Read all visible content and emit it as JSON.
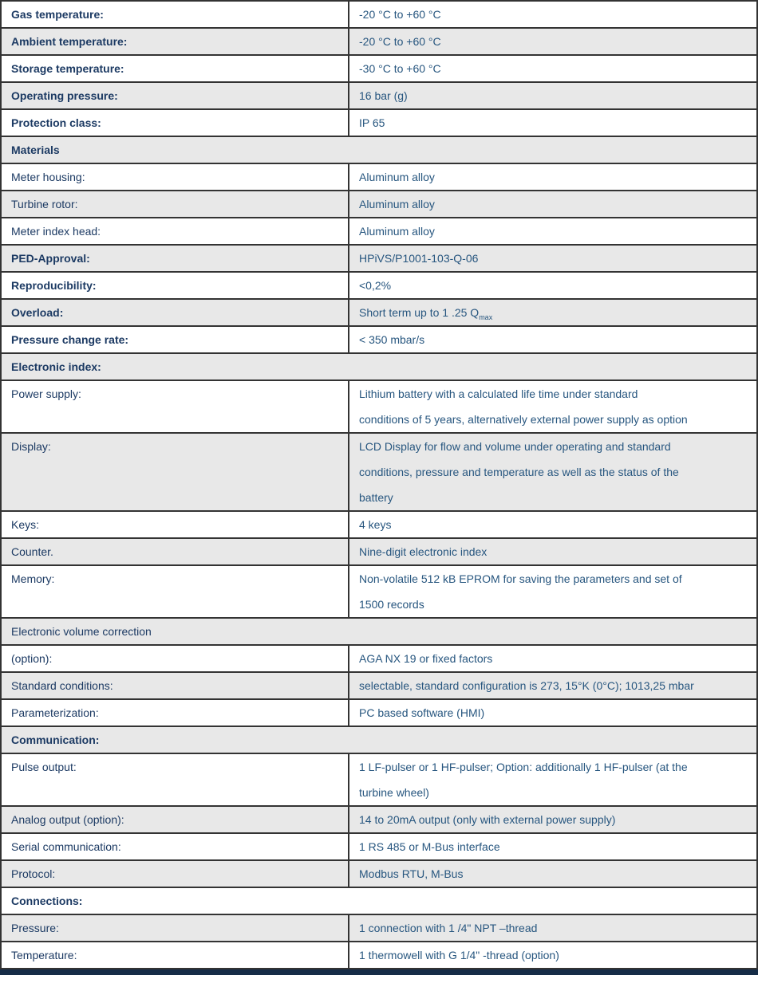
{
  "colors": {
    "border": "#333333",
    "row_shade": "#E8E8E8",
    "label_text": "#1C3A63",
    "value_text": "#27567F",
    "bottom_bar": "#152C47"
  },
  "table": {
    "rows": [
      {
        "label": "Gas temperature:",
        "value": "-20 °C to +60 °C"
      },
      {
        "label": "Ambient temperature:",
        "value": "-20 °C to +60 °C"
      },
      {
        "label": "Storage temperature:",
        "value": "-30 °C to +60 °C"
      },
      {
        "label": "Operating pressure:",
        "value": "16 bar (g)"
      },
      {
        "label": "Protection class:",
        "value": "IP 65"
      },
      {
        "label": "Materials"
      },
      {
        "label": "Meter housing:",
        "value": "Aluminum alloy"
      },
      {
        "label": "Turbine rotor:",
        "value": "Aluminum alloy"
      },
      {
        "label": "Meter index head:",
        "value": "Aluminum alloy"
      },
      {
        "label": "PED-Approval:",
        "value": "HPiVS/P1001-103-Q-06"
      },
      {
        "label": "Reproducibility:",
        "value": "<0,2%"
      },
      {
        "label": "Overload:",
        "value": "Short term up to 1 .25 Q",
        "value_sub": "max"
      },
      {
        "label": "Pressure change rate:",
        "value": "< 350 mbar/s"
      },
      {
        "label": "Electronic index:"
      },
      {
        "label": "Power supply:",
        "value": "Lithium battery with a calculated life time under standard\nconditions of 5 years, alternatively external power supply as option"
      },
      {
        "label": "Display:",
        "value": "LCD Display for flow and volume under operating and standard\nconditions, pressure and temperature as well as the status of the\nbattery"
      },
      {
        "label": "Keys:",
        "value": "4 keys"
      },
      {
        "label": "Counter.",
        "value": "Nine-digit electronic index"
      },
      {
        "label": "Memory:",
        "value": "Non-volatile 512 kB EPROM for saving the parameters and set of\n1500 records"
      },
      {
        "label": "Electronic volume correction"
      },
      {
        "label": "(option):",
        "value": "AGA NX 19 or fixed factors"
      },
      {
        "label": "Standard conditions:",
        "value": "selectable, standard configuration is 273, 15°K (0°C); 1013,25 mbar"
      },
      {
        "label": "Parameterization:",
        "value": "PC based software (HMI)"
      },
      {
        "label": "Communication:"
      },
      {
        "label": "Pulse output:",
        "value": "1 LF-pulser or 1 HF-pulser; Option: additionally 1 HF-pulser (at the\nturbine wheel)"
      },
      {
        "label": "Analog output (option):",
        "value": "14 to 20mA output (only with external power supply)"
      },
      {
        "label": "Serial communication:",
        "value": "1 RS 485 or M-Bus interface"
      },
      {
        "label": "Protocol:",
        "value": "Modbus RTU, M-Bus"
      },
      {
        "label": "Connections:"
      },
      {
        "label": "Pressure:",
        "value": "1 connection with 1 /4\" NPT –thread"
      },
      {
        "label": "Temperature:",
        "value": "1 thermowell with G 1/4\" -thread (option)"
      }
    ]
  }
}
